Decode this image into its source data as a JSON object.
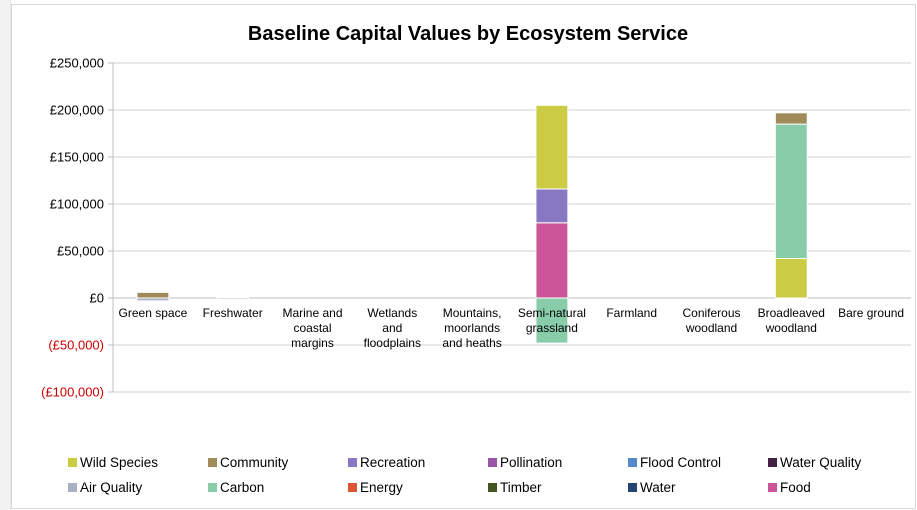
{
  "chart_data": {
    "type": "bar",
    "stacked": true,
    "title": "Baseline Capital Values by Ecosystem Service",
    "xlabel": "",
    "ylabel": "",
    "ylim": [
      -100000,
      250000
    ],
    "y_ticks": [
      {
        "value": 250000,
        "label": "£250,000",
        "color": "#000000"
      },
      {
        "value": 200000,
        "label": "£200,000",
        "color": "#000000"
      },
      {
        "value": 150000,
        "label": "£150,000",
        "color": "#000000"
      },
      {
        "value": 100000,
        "label": "£100,000",
        "color": "#000000"
      },
      {
        "value": 50000,
        "label": "£50,000",
        "color": "#000000"
      },
      {
        "value": 0,
        "label": "£0",
        "color": "#000000"
      },
      {
        "value": -50000,
        "label": "(£50,000)",
        "color": "#cc0000"
      },
      {
        "value": -100000,
        "label": "(£100,000)",
        "color": "#cc0000"
      }
    ],
    "grid": true,
    "legend_position": "bottom",
    "categories": [
      [
        "Green space"
      ],
      [
        "Freshwater"
      ],
      [
        "Marine and",
        "coastal",
        "margins"
      ],
      [
        "Wetlands",
        "and",
        "floodplains"
      ],
      [
        "Mountains,",
        "moorlands",
        "and heaths"
      ],
      [
        "Semi-natural",
        "grassland"
      ],
      [
        "Farmland"
      ],
      [
        "Coniferous",
        "woodland"
      ],
      [
        "Broadleaved",
        "woodland"
      ],
      [
        "Bare ground"
      ]
    ],
    "series": [
      {
        "name": "Food",
        "color": "#cc5599",
        "values": [
          0,
          0,
          0,
          0,
          0,
          80000,
          0,
          0,
          0,
          0
        ]
      },
      {
        "name": "Recreation",
        "color": "#8877c2",
        "values": [
          0,
          0,
          0,
          0,
          0,
          36000,
          0,
          0,
          0,
          0
        ]
      },
      {
        "name": "Wild Species",
        "color": "#cccc44",
        "values": [
          0,
          0,
          0,
          0,
          0,
          89000,
          0,
          0,
          42000,
          0
        ]
      },
      {
        "name": "Carbon",
        "color": "#88ccaa",
        "values": [
          0,
          0,
          0,
          0,
          0,
          -48000,
          0,
          0,
          143000,
          0
        ]
      },
      {
        "name": "Community",
        "color": "#a08c5a",
        "values": [
          6000,
          0,
          0,
          0,
          0,
          0,
          0,
          0,
          12000,
          0
        ]
      },
      {
        "name": "Air Quality",
        "color": "#a6b2c4",
        "values": [
          -3000,
          -1500,
          0,
          0,
          0,
          0,
          0,
          0,
          0,
          0
        ]
      }
    ],
    "legend": [
      {
        "name": "Wild Species",
        "color": "#cccc44"
      },
      {
        "name": "Community",
        "color": "#a08c5a"
      },
      {
        "name": "Recreation",
        "color": "#8877c2"
      },
      {
        "name": "Pollination",
        "color": "#9955aa"
      },
      {
        "name": "Flood Control",
        "color": "#5588cc"
      },
      {
        "name": "Water Quality",
        "color": "#442244"
      },
      {
        "name": "Air Quality",
        "color": "#a6b2c4"
      },
      {
        "name": "Carbon",
        "color": "#88ccaa"
      },
      {
        "name": "Energy",
        "color": "#dd5533"
      },
      {
        "name": "Timber",
        "color": "#445522"
      },
      {
        "name": "Water",
        "color": "#224477"
      },
      {
        "name": "Food",
        "color": "#cc5599"
      }
    ]
  }
}
